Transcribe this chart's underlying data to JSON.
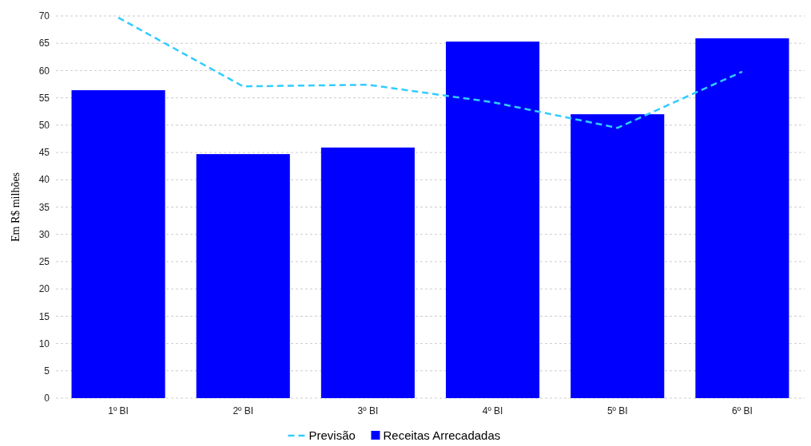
{
  "chart_data": {
    "type": "bar",
    "ylabel": "Em R$ milhões",
    "categories": [
      "1º BI",
      "2º BI",
      "3º BI",
      "4º BI",
      "5º BI",
      "6º BI"
    ],
    "series": [
      {
        "name": "Previsão",
        "type": "line",
        "color": "#33ccff",
        "line_style": "dashed",
        "values": [
          69.7,
          57.1,
          57.4,
          54.2,
          49.5,
          59.8
        ]
      },
      {
        "name": "Receitas Arrecadadas",
        "color": "#0000ff",
        "values": [
          56.4,
          44.7,
          45.9,
          65.3,
          52.0,
          65.9
        ]
      }
    ],
    "ylim": [
      0,
      70
    ],
    "yticks": [
      0,
      5,
      10,
      15,
      20,
      25,
      30,
      35,
      40,
      45,
      50,
      55,
      60,
      65,
      70
    ],
    "grid": "y",
    "legend": "bottom",
    "marker": "none"
  }
}
